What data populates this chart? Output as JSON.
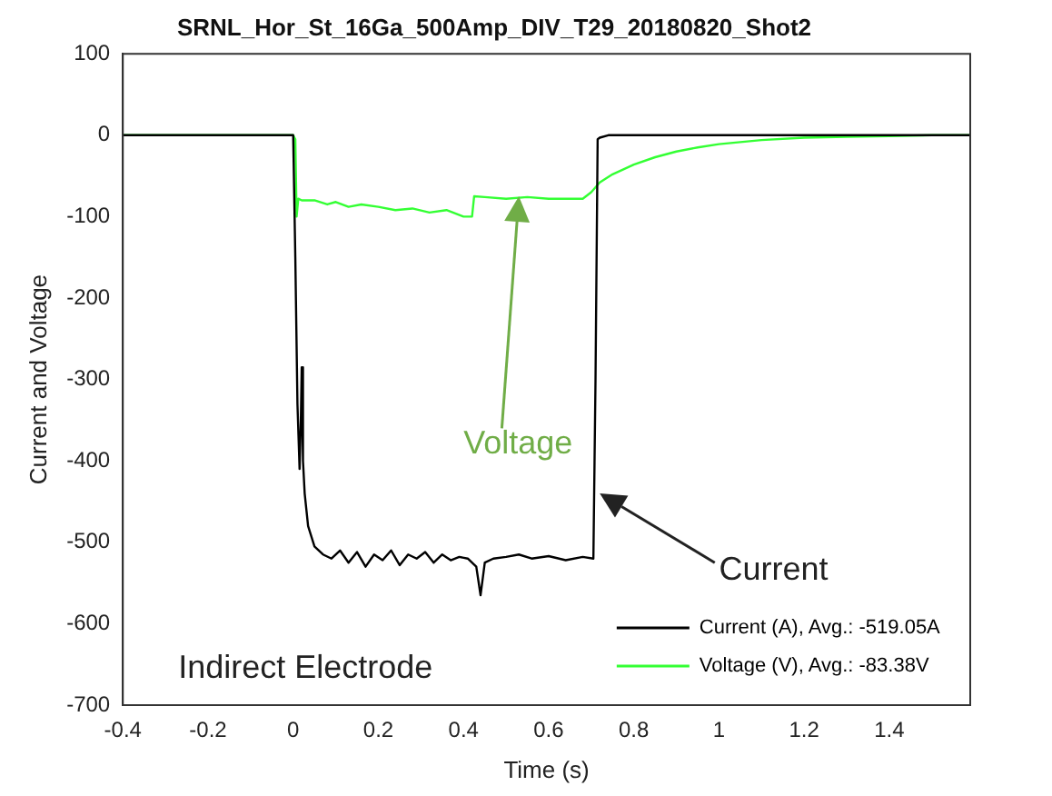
{
  "chart_data": {
    "type": "line",
    "title": "SRNL_Hor_St_16Ga_500Amp_DIV_T29_20180820_Shot2",
    "xlabel": "Time (s)",
    "ylabel": "Current and Voltage",
    "xlim": [
      -0.4,
      1.59
    ],
    "xticks": [
      -0.4,
      -0.2,
      0,
      0.2,
      0.4,
      0.6,
      0.8,
      1,
      1.2,
      1.4
    ],
    "ylim": [
      -700,
      100
    ],
    "yticks": [
      -700,
      -600,
      -500,
      -400,
      -300,
      -200,
      -100,
      0,
      100
    ],
    "grid": false,
    "legend": "bottom right",
    "marker": "none",
    "line_style": "solid",
    "annotations": [
      "Voltage",
      "Current",
      "Indirect Electrode"
    ],
    "series": [
      {
        "name": "Current (A), Avg.: -519.05A",
        "color": "#000000",
        "x": [
          -0.4,
          0,
          0.005,
          0.01,
          0.015,
          0.018,
          0.02,
          0.023,
          0.027,
          0.035,
          0.05,
          0.07,
          0.09,
          0.11,
          0.13,
          0.15,
          0.17,
          0.19,
          0.21,
          0.23,
          0.25,
          0.27,
          0.29,
          0.31,
          0.33,
          0.35,
          0.37,
          0.39,
          0.41,
          0.43,
          0.44,
          0.45,
          0.47,
          0.5,
          0.53,
          0.56,
          0.6,
          0.64,
          0.68,
          0.705,
          0.71,
          0.715,
          0.72,
          0.74,
          0.8,
          1.0,
          1.59
        ],
        "values": [
          0,
          0,
          -150,
          -330,
          -410,
          -350,
          -285,
          -400,
          -440,
          -480,
          -505,
          -515,
          -520,
          -510,
          -525,
          -512,
          -530,
          -515,
          -522,
          -510,
          -528,
          -515,
          -520,
          -512,
          -525,
          -515,
          -522,
          -518,
          -520,
          -530,
          -565,
          -525,
          -520,
          -518,
          -515,
          -520,
          -517,
          -522,
          -518,
          -520,
          -300,
          -5,
          -3,
          0,
          0,
          0,
          0
        ]
      },
      {
        "name": "Voltage (V), Avg.: -83.38V",
        "color": "#33ff33",
        "x": [
          -0.4,
          0,
          0.005,
          0.008,
          0.012,
          0.02,
          0.05,
          0.08,
          0.1,
          0.13,
          0.16,
          0.2,
          0.24,
          0.28,
          0.32,
          0.36,
          0.4,
          0.42,
          0.425,
          0.45,
          0.5,
          0.55,
          0.6,
          0.65,
          0.68,
          0.7,
          0.72,
          0.75,
          0.8,
          0.85,
          0.9,
          0.95,
          1.0,
          1.1,
          1.2,
          1.3,
          1.4,
          1.5,
          1.59
        ],
        "values": [
          0,
          0,
          -5,
          -100,
          -78,
          -80,
          -80,
          -85,
          -82,
          -88,
          -85,
          -88,
          -92,
          -90,
          -95,
          -92,
          -100,
          -100,
          -75,
          -76,
          -78,
          -76,
          -78,
          -78,
          -78,
          -70,
          -58,
          -48,
          -36,
          -27,
          -20,
          -15,
          -11,
          -6,
          -3,
          -2,
          -1,
          0,
          0
        ]
      }
    ]
  }
}
